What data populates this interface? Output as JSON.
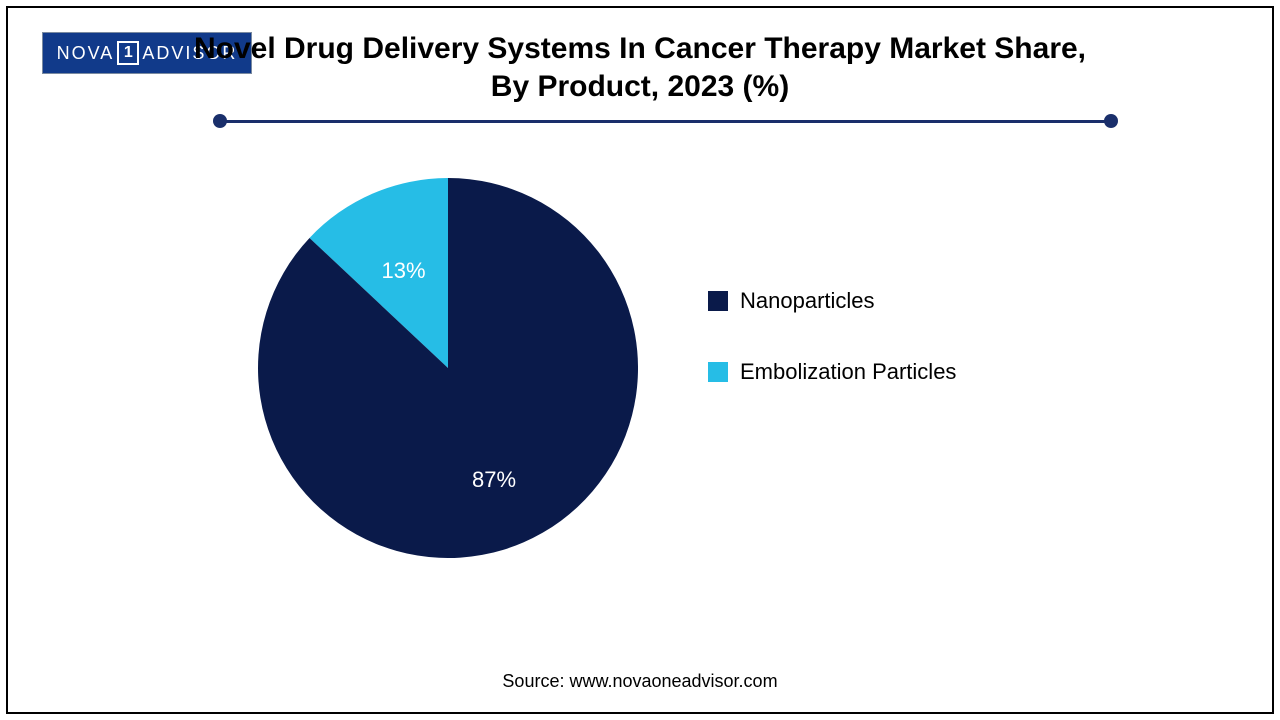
{
  "logo": {
    "text_left": "NOVA",
    "box_text": "1",
    "text_right": "ADVISOR",
    "bg_color": "#113a8a",
    "text_color": "#ffffff"
  },
  "title": {
    "line1": "Novel Drug Delivery Systems In Cancer Therapy Market Share,",
    "line2": "By Product, 2023 (%)",
    "fontsize": 30,
    "fontweight": 700,
    "color": "#000000"
  },
  "divider": {
    "line_color": "#1a2f6b",
    "dot_color": "#1a2f6b"
  },
  "pie": {
    "type": "pie",
    "start_angle_deg": 0,
    "radius": 190,
    "label_fontsize": 22,
    "label_color": "#ffffff",
    "background_color": "#ffffff",
    "slices": [
      {
        "label": "Embolization Particles",
        "value": 13,
        "display": "13%",
        "color": "#26bde6"
      },
      {
        "label": "Nanoparticles",
        "value": 87,
        "display": "87%",
        "color": "#0a1a4a"
      }
    ]
  },
  "legend": [
    {
      "label": "Nanoparticles",
      "color": "#0a1a4a"
    },
    {
      "label": "Embolization Particles",
      "color": "#26bde6"
    }
  ],
  "source": {
    "text": "Source: www.novaoneadvisor.com",
    "fontsize": 18
  }
}
